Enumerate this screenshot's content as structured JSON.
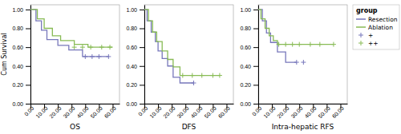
{
  "chart_data": [
    {
      "type": "line",
      "xlabel": "OS",
      "ylabel": "Cum Survival",
      "xlim": [
        0,
        65
      ],
      "ylim": [
        0.0,
        1.05
      ],
      "xticks": [
        {
          "value": 0,
          "label": "0.00"
        },
        {
          "value": 10,
          "label": "10.00"
        },
        {
          "value": 20,
          "label": "20.00"
        },
        {
          "value": 30,
          "label": "30.00"
        },
        {
          "value": 40,
          "label": "40.00"
        },
        {
          "value": 50,
          "label": "50.00"
        },
        {
          "value": 60,
          "label": "60.00"
        }
      ],
      "yticks": [
        {
          "value": 0.0,
          "label": "0.00"
        },
        {
          "value": 0.2,
          "label": "0.20"
        },
        {
          "value": 0.4,
          "label": "0.40"
        },
        {
          "value": 0.6,
          "label": "0.60"
        },
        {
          "value": 0.8,
          "label": "0.80"
        },
        {
          "value": 1.0,
          "label": "1.00"
        }
      ],
      "series": [
        {
          "type": "step",
          "color": "#7777bb",
          "x": [
            0,
            4,
            4,
            8,
            8,
            12,
            12,
            20,
            20,
            28,
            28,
            38,
            38,
            57,
            57
          ],
          "values": [
            1.0,
            1.0,
            0.88,
            0.88,
            0.78,
            0.78,
            0.68,
            0.68,
            0.62,
            0.62,
            0.57,
            0.57,
            0.5,
            0.5,
            0.5
          ]
        },
        {
          "type": "step",
          "color": "#88bb55",
          "x": [
            0,
            5,
            5,
            10,
            10,
            16,
            16,
            22,
            22,
            32,
            32,
            42,
            42,
            60
          ],
          "values": [
            1.0,
            1.0,
            0.9,
            0.9,
            0.8,
            0.8,
            0.72,
            0.72,
            0.67,
            0.67,
            0.63,
            0.63,
            0.6,
            0.6
          ]
        },
        {
          "type": "scatter",
          "marker": "plus",
          "color": "#7777bb",
          "x": [
            40,
            45,
            50,
            57
          ],
          "values": [
            0.5,
            0.5,
            0.5,
            0.5
          ]
        },
        {
          "type": "scatter",
          "marker": "plus",
          "color": "#88bb55",
          "x": [
            32,
            38,
            44,
            52,
            58
          ],
          "values": [
            0.6,
            0.6,
            0.6,
            0.6,
            0.6
          ]
        }
      ]
    },
    {
      "type": "line",
      "xlabel": "DFS",
      "xlim": [
        0,
        65
      ],
      "ylim": [
        0.0,
        1.05
      ],
      "xticks": [
        {
          "value": 0,
          "label": "0.00"
        },
        {
          "value": 10,
          "label": "10.00"
        },
        {
          "value": 20,
          "label": "20.00"
        },
        {
          "value": 30,
          "label": "30.00"
        },
        {
          "value": 40,
          "label": "40.00"
        },
        {
          "value": 50,
          "label": "50.00"
        },
        {
          "value": 60,
          "label": "60.00"
        }
      ],
      "yticks": [
        {
          "value": 0.0,
          "label": "0.00"
        },
        {
          "value": 0.2,
          "label": "0.20"
        },
        {
          "value": 0.4,
          "label": "0.40"
        },
        {
          "value": 0.6,
          "label": "0.60"
        },
        {
          "value": 0.8,
          "label": "0.80"
        },
        {
          "value": 1.0,
          "label": "1.00"
        }
      ],
      "series": [
        {
          "type": "step",
          "color": "#7777bb",
          "x": [
            0,
            2,
            2,
            5,
            5,
            8,
            8,
            10,
            10,
            13,
            13,
            17,
            17,
            21,
            21,
            26,
            26,
            36,
            36
          ],
          "values": [
            1.0,
            1.0,
            0.88,
            0.88,
            0.76,
            0.76,
            0.66,
            0.66,
            0.56,
            0.56,
            0.48,
            0.48,
            0.4,
            0.4,
            0.28,
            0.28,
            0.22,
            0.22,
            0.22
          ]
        },
        {
          "type": "step",
          "color": "#88bb55",
          "x": [
            0,
            3,
            3,
            6,
            6,
            9,
            9,
            13,
            13,
            17,
            17,
            21,
            21,
            26,
            26,
            55,
            55
          ],
          "values": [
            1.0,
            1.0,
            0.88,
            0.88,
            0.76,
            0.76,
            0.66,
            0.66,
            0.56,
            0.56,
            0.47,
            0.47,
            0.39,
            0.39,
            0.3,
            0.3,
            0.3
          ]
        },
        {
          "type": "scatter",
          "marker": "plus",
          "color": "#7777bb",
          "x": [
            36
          ],
          "values": [
            0.22
          ]
        },
        {
          "type": "scatter",
          "marker": "plus",
          "color": "#88bb55",
          "x": [
            28,
            35,
            42,
            50,
            55
          ],
          "values": [
            0.3,
            0.3,
            0.3,
            0.3,
            0.3
          ]
        }
      ]
    },
    {
      "type": "line",
      "xlabel": "Intra-hepatic RFS",
      "xlim": [
        0,
        65
      ],
      "ylim": [
        0.0,
        1.05
      ],
      "xticks": [
        {
          "value": 0,
          "label": "0.00"
        },
        {
          "value": 10,
          "label": "10.00"
        },
        {
          "value": 20,
          "label": "20.00"
        },
        {
          "value": 30,
          "label": "30.00"
        },
        {
          "value": 40,
          "label": "40.00"
        },
        {
          "value": 50,
          "label": "50.00"
        },
        {
          "value": 60,
          "label": "60.00"
        }
      ],
      "yticks": [
        {
          "value": 0.0,
          "label": "0.00"
        },
        {
          "value": 0.2,
          "label": "0.20"
        },
        {
          "value": 0.4,
          "label": "0.40"
        },
        {
          "value": 0.6,
          "label": "0.60"
        },
        {
          "value": 0.8,
          "label": "0.80"
        },
        {
          "value": 1.0,
          "label": "1.00"
        }
      ],
      "legend": "right",
      "legend_title": "group",
      "series": [
        {
          "name": "Resection",
          "type": "step",
          "color": "#7777bb",
          "x": [
            0,
            3,
            3,
            6,
            6,
            9,
            9,
            14,
            14,
            20,
            20,
            28,
            28
          ],
          "values": [
            1.0,
            1.0,
            0.88,
            0.88,
            0.75,
            0.75,
            0.65,
            0.65,
            0.55,
            0.55,
            0.44,
            0.44,
            0.44
          ]
        },
        {
          "name": "Ablation",
          "type": "step",
          "color": "#88bb55",
          "x": [
            0,
            2,
            2,
            5,
            5,
            8,
            8,
            11,
            11,
            14,
            14,
            55
          ],
          "values": [
            1.0,
            1.0,
            0.9,
            0.9,
            0.8,
            0.8,
            0.72,
            0.72,
            0.67,
            0.67,
            0.63,
            0.63
          ]
        },
        {
          "name": "+",
          "type": "scatter",
          "marker": "plus",
          "color": "#7777bb",
          "x": [
            28,
            33
          ],
          "values": [
            0.44,
            0.44
          ]
        },
        {
          "name": "++",
          "type": "scatter",
          "marker": "plus",
          "color": "#88bb55",
          "x": [
            15,
            20,
            25,
            30,
            38,
            45,
            55
          ],
          "values": [
            0.63,
            0.63,
            0.63,
            0.63,
            0.63,
            0.63,
            0.63
          ]
        }
      ]
    }
  ]
}
